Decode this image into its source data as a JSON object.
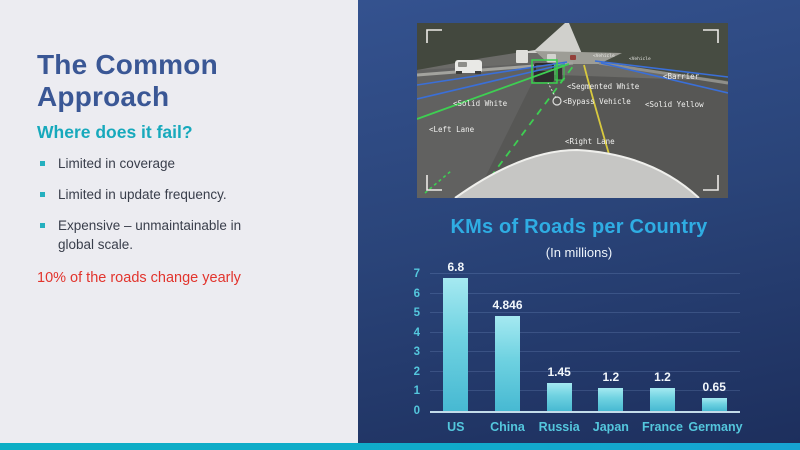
{
  "slide": {
    "title": "The Common Approach",
    "question": "Where does it fail?",
    "bullets": [
      "Limited in coverage",
      "Limited in update frequency.",
      "Expensive – unmaintainable in global scale."
    ],
    "note": "10% of the roads change yearly"
  },
  "camera_view": {
    "annotations": {
      "solid_white": "<Solid White",
      "left_lane": "<Left Lane",
      "segmented_white": "<Segmented White",
      "bypass_vehicle": "<Bypass Vehicle",
      "right_lane": "<Right Lane",
      "barrier": "<Barrier",
      "solid_yellow": "<Solid Yellow",
      "vehicle_1": "<Vehicle",
      "vehicle_2": "<Vehicle"
    }
  },
  "chart_data": {
    "type": "bar",
    "title": "KMs of Roads per Country",
    "subtitle": "(In millions)",
    "categories": [
      "US",
      "China",
      "Russia",
      "Japan",
      "France",
      "Germany"
    ],
    "values": [
      6.8,
      4.846,
      1.45,
      1.2,
      1.2,
      0.65
    ],
    "value_labels": [
      "6.8",
      "4.846",
      "1.45",
      "1.2",
      "1.2",
      "0.65"
    ],
    "xlabel": "",
    "ylabel": "",
    "ylim": [
      0,
      7
    ],
    "yticks": [
      0,
      1,
      2,
      3,
      4,
      5,
      6,
      7
    ],
    "grid": true,
    "legend": false
  },
  "colors": {
    "left_bg": "#ececf1",
    "title_blue": "#3a5795",
    "accent_teal": "#17a9bc",
    "note_red": "#e2342d",
    "panel_blue_top": "#34528f",
    "panel_blue_bottom": "#1d2f5d",
    "footer_teal": "#0caec5",
    "chart_title_blue": "#2fade3",
    "tick_cyan": "#54c7dd",
    "bar_top": "#a5e9f1",
    "bar_bottom": "#47b9d2"
  }
}
